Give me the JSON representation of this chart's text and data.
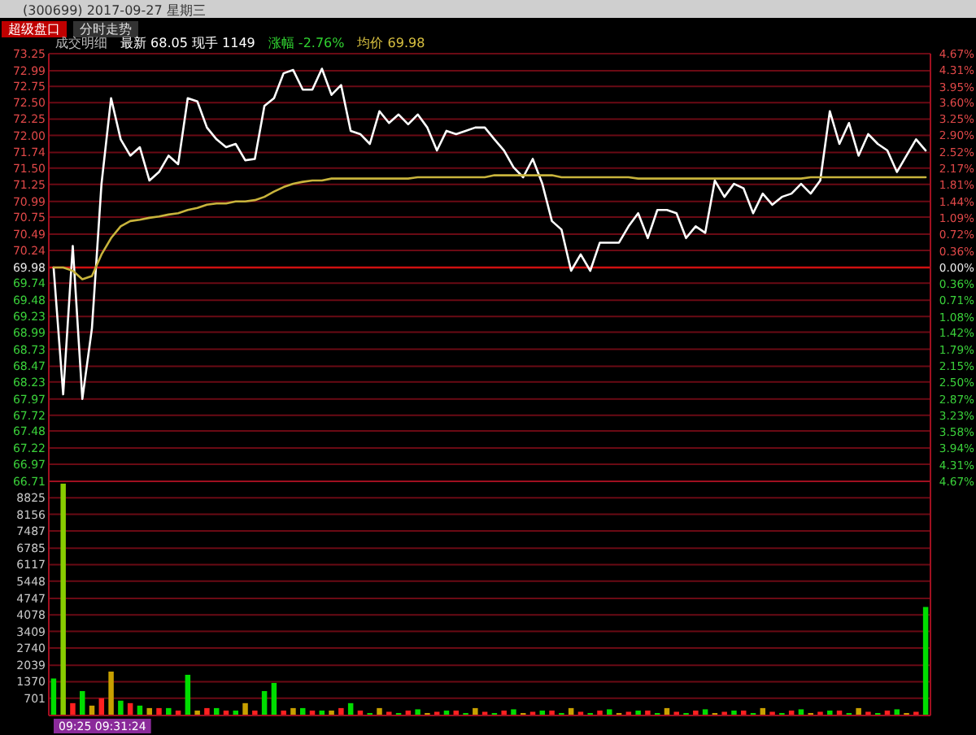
{
  "chart_data": [
    {
      "type": "line",
      "title": "(300699) 2017-09-27 星期三",
      "annotations": [
        "超级盘口",
        "分时走势",
        "成交明细",
        "最新 68.05 现手 1149",
        "涨幅 -2.76%",
        "均价 69.98"
      ],
      "categories": [
        null,
        null,
        null,
        null,
        null,
        null,
        null,
        null,
        null,
        null,
        null,
        null,
        null,
        null,
        null,
        null,
        null,
        null,
        null,
        null,
        null,
        null,
        null,
        null,
        null,
        null,
        null,
        null,
        null,
        null,
        null,
        null,
        null,
        null,
        null,
        null,
        null,
        null,
        null,
        null,
        null,
        null,
        null,
        null,
        null,
        null,
        null,
        null,
        null,
        null,
        null,
        null,
        null,
        null,
        null,
        null,
        null,
        null,
        null,
        null,
        null,
        null,
        null,
        null,
        null,
        null,
        null,
        null,
        null,
        null,
        null,
        null,
        null,
        null,
        null,
        null,
        null,
        null,
        null,
        null,
        null,
        null,
        null,
        null,
        null,
        null,
        null,
        null,
        null,
        null,
        null,
        null
      ],
      "series": [
        {
          "color": "#ffffff",
          "values": [
            69.98,
            68.04,
            70.31,
            67.97,
            69.05,
            71.26,
            72.57,
            71.94,
            71.69,
            71.82,
            71.31,
            71.44,
            71.69,
            71.56,
            72.57,
            72.52,
            72.12,
            71.94,
            71.82,
            71.87,
            71.62,
            71.64,
            72.45,
            72.57,
            72.95,
            73.0,
            72.7,
            72.7,
            73.02,
            72.62,
            72.77,
            72.07,
            72.02,
            71.87,
            72.37,
            72.19,
            72.32,
            72.17,
            72.32,
            72.12,
            71.77,
            72.07,
            72.02,
            72.07,
            72.12,
            72.12,
            71.94,
            71.77,
            71.51,
            71.36,
            71.64,
            71.26,
            70.69,
            70.56,
            69.93,
            70.18,
            69.93,
            70.36,
            70.36,
            70.36,
            70.61,
            70.81,
            70.43,
            70.86,
            70.86,
            70.81,
            70.43,
            70.61,
            70.51,
            71.31,
            71.06,
            71.26,
            71.19,
            70.81,
            71.11,
            70.94,
            71.06,
            71.11,
            71.26,
            71.11,
            71.31,
            72.37,
            71.87,
            72.19,
            71.69,
            72.02,
            71.87,
            71.77,
            71.44,
            71.69,
            71.94,
            71.77
          ]
        },
        {
          "color": "#c8b43c",
          "values": [
            69.98,
            69.98,
            69.93,
            69.8,
            69.85,
            70.18,
            70.43,
            70.61,
            70.69,
            70.71,
            70.74,
            70.76,
            70.79,
            70.81,
            70.86,
            70.89,
            70.94,
            70.96,
            70.96,
            70.99,
            70.99,
            71.01,
            71.06,
            71.14,
            71.21,
            71.26,
            71.29,
            71.31,
            71.31,
            71.34,
            71.34,
            71.34,
            71.34,
            71.34,
            71.34,
            71.34,
            71.34,
            71.34,
            71.36,
            71.36,
            71.36,
            71.36,
            71.36,
            71.36,
            71.36,
            71.36,
            71.39,
            71.39,
            71.39,
            71.39,
            71.39,
            71.39,
            71.39,
            71.36,
            71.36,
            71.36,
            71.36,
            71.36,
            71.36,
            71.36,
            71.36,
            71.34,
            71.34,
            71.34,
            71.34,
            71.34,
            71.34,
            71.34,
            71.34,
            71.34,
            71.34,
            71.34,
            71.34,
            71.34,
            71.34,
            71.34,
            71.34,
            71.34,
            71.34,
            71.36,
            71.36,
            71.36,
            71.36,
            71.36,
            71.36,
            71.36,
            71.36,
            71.36,
            71.36,
            71.36,
            71.36,
            71.36
          ]
        }
      ],
      "ylim": [
        66.71,
        73.25
      ],
      "yticks": [
        {
          "value": 73.25,
          "label": "73.25"
        },
        {
          "value": 72.99,
          "label": "72.99"
        },
        {
          "value": 72.75,
          "label": "72.75"
        },
        {
          "value": 72.5,
          "label": "72.50"
        },
        {
          "value": 72.25,
          "label": "72.25"
        },
        {
          "value": 72.0,
          "label": "72.00"
        },
        {
          "value": 71.74,
          "label": "71.74"
        },
        {
          "value": 71.5,
          "label": "71.50"
        },
        {
          "value": 71.25,
          "label": "71.25"
        },
        {
          "value": 70.99,
          "label": "70.99"
        },
        {
          "value": 70.75,
          "label": "70.75"
        },
        {
          "value": 70.49,
          "label": "70.49"
        },
        {
          "value": 70.24,
          "label": "70.24"
        },
        {
          "value": 69.98,
          "label": "69.98"
        },
        {
          "value": 69.74,
          "label": "69.74"
        },
        {
          "value": 69.48,
          "label": "69.48"
        },
        {
          "value": 69.23,
          "label": "69.23"
        },
        {
          "value": 68.99,
          "label": "68.99"
        },
        {
          "value": 68.73,
          "label": "68.73"
        },
        {
          "value": 68.47,
          "label": "68.47"
        },
        {
          "value": 68.23,
          "label": "68.23"
        },
        {
          "value": 67.97,
          "label": "67.97"
        },
        {
          "value": 67.72,
          "label": "67.72"
        },
        {
          "value": 67.48,
          "label": "67.48"
        },
        {
          "value": 67.22,
          "label": "67.22"
        },
        {
          "value": 66.97,
          "label": "66.97"
        },
        {
          "value": 66.71,
          "label": "66.71"
        }
      ],
      "y2lim": [
        -4.67,
        4.67
      ],
      "y2ticks": [
        {
          "value": 4.67,
          "label": "4.67%"
        },
        {
          "value": 4.31,
          "label": "4.31%"
        },
        {
          "value": 3.95,
          "label": "3.95%"
        },
        {
          "value": 3.6,
          "label": "3.60%"
        },
        {
          "value": 3.25,
          "label": "3.25%"
        },
        {
          "value": 2.9,
          "label": "2.90%"
        },
        {
          "value": 2.52,
          "label": "2.52%"
        },
        {
          "value": 2.17,
          "label": "2.17%"
        },
        {
          "value": 1.81,
          "label": "1.81%"
        },
        {
          "value": 1.44,
          "label": "1.44%"
        },
        {
          "value": 1.09,
          "label": "1.09%"
        },
        {
          "value": 0.72,
          "label": "0.72%"
        },
        {
          "value": 0.36,
          "label": "0.36%"
        },
        {
          "value": 0,
          "label": "0.00%"
        },
        {
          "value": -0.36,
          "label": "0.36%"
        },
        {
          "value": -0.71,
          "label": "0.71%"
        },
        {
          "value": -1.08,
          "label": "1.08%"
        },
        {
          "value": -1.42,
          "label": "1.42%"
        },
        {
          "value": -1.79,
          "label": "1.79%"
        },
        {
          "value": -2.15,
          "label": "2.15%"
        },
        {
          "value": -2.5,
          "label": "2.50%"
        },
        {
          "value": -2.87,
          "label": "2.87%"
        },
        {
          "value": -3.23,
          "label": "3.23%"
        },
        {
          "value": -3.58,
          "label": "3.58%"
        },
        {
          "value": -3.94,
          "label": "3.94%"
        },
        {
          "value": -4.31,
          "label": "4.31%"
        },
        {
          "value": -4.67,
          "label": "4.67%"
        }
      ],
      "ref_lines": [
        {
          "axis": "y",
          "value": 69.98,
          "color": "#d01010"
        }
      ],
      "grid": "y"
    },
    {
      "type": "bar",
      "annotations": [
        "09:25 09:31:24"
      ],
      "categories": [
        null,
        null,
        null,
        null,
        null,
        null,
        null,
        null,
        null,
        null,
        null,
        null,
        null,
        null,
        null,
        null,
        null,
        null,
        null,
        null,
        null,
        null,
        null,
        null,
        null,
        null,
        null,
        null,
        null,
        null,
        null,
        null,
        null,
        null,
        null,
        null,
        null,
        null,
        null,
        null,
        null,
        null,
        null,
        null,
        null,
        null,
        null,
        null,
        null,
        null,
        null,
        null,
        null,
        null,
        null,
        null,
        null,
        null,
        null,
        null,
        null,
        null,
        null,
        null,
        null,
        null,
        null,
        null,
        null,
        null,
        null,
        null,
        null,
        null,
        null,
        null,
        null,
        null,
        null,
        null,
        null,
        null,
        null,
        null,
        null,
        null,
        null,
        null,
        null,
        null,
        null,
        null
      ],
      "values": [
        1500,
        9400,
        500,
        990,
        400,
        700,
        1780,
        600,
        500,
        400,
        300,
        300,
        300,
        200,
        1650,
        200,
        300,
        300,
        200,
        200,
        500,
        200,
        990,
        1320,
        200,
        300,
        300,
        200,
        200,
        200,
        300,
        500,
        200,
        100,
        300,
        150,
        100,
        200,
        250,
        100,
        150,
        200,
        200,
        100,
        300,
        150,
        100,
        200,
        250,
        100,
        150,
        200,
        200,
        100,
        300,
        150,
        100,
        200,
        250,
        100,
        150,
        200,
        200,
        100,
        300,
        150,
        100,
        200,
        250,
        100,
        150,
        200,
        200,
        100,
        300,
        150,
        100,
        200,
        250,
        100,
        150,
        200,
        200,
        100,
        300,
        150,
        100,
        200,
        250,
        100,
        150,
        4400
      ],
      "colors": [
        "#00dd00",
        "#88cc00",
        "#ff2020",
        "#00dd00",
        "#c8a000",
        "#ff2020",
        "#c8a000",
        "#00dd00",
        "#ff2020",
        "#00dd00",
        "#c8a000",
        "#ff2020",
        "#00dd00",
        "#ff2020",
        "#00dd00",
        "#c8a000",
        "#ff2020",
        "#00dd00",
        "#ff2020",
        "#00dd00",
        "#c8a000",
        "#ff2020",
        "#00dd00",
        "#00dd00",
        "#ff2020",
        "#c8a000",
        "#00dd00",
        "#ff2020",
        "#00dd00",
        "#c8a000",
        "#ff2020",
        "#00dd00",
        "#ff2020",
        "#00dd00",
        "#c8a000",
        "#ff2020",
        "#00dd00",
        "#ff2020",
        "#00dd00",
        "#c8a000",
        "#ff2020",
        "#00dd00",
        "#ff2020",
        "#00dd00",
        "#c8a000",
        "#ff2020",
        "#00dd00",
        "#ff2020",
        "#00dd00",
        "#c8a000",
        "#ff2020",
        "#00dd00",
        "#ff2020",
        "#00dd00",
        "#c8a000",
        "#ff2020",
        "#00dd00",
        "#ff2020",
        "#00dd00",
        "#c8a000",
        "#ff2020",
        "#00dd00",
        "#ff2020",
        "#00dd00",
        "#c8a000",
        "#ff2020",
        "#00dd00",
        "#ff2020",
        "#00dd00",
        "#c8a000",
        "#ff2020",
        "#00dd00",
        "#ff2020",
        "#00dd00",
        "#c8a000",
        "#ff2020",
        "#00dd00",
        "#ff2020",
        "#00dd00",
        "#c8a000",
        "#ff2020",
        "#00dd00",
        "#ff2020",
        "#00dd00",
        "#c8a000",
        "#ff2020",
        "#00dd00",
        "#ff2020",
        "#00dd00",
        "#c8a000",
        "#ff2020",
        "#00dd00"
      ],
      "ylim": [
        0,
        9494
      ],
      "yticks": [
        701,
        1370,
        2039,
        2740,
        3409,
        4078,
        4747,
        5448,
        6117,
        6785,
        7487,
        8156,
        8825
      ],
      "grid": "y"
    }
  ]
}
